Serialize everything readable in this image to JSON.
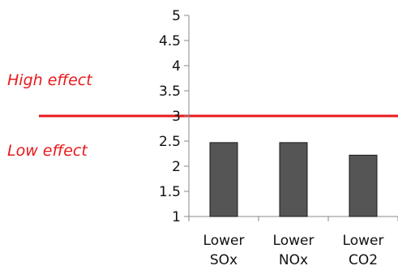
{
  "chart_data": {
    "type": "bar",
    "categories": [
      [
        "Lower",
        "SOx"
      ],
      [
        "Lower",
        "NOx"
      ],
      [
        "Lower",
        "CO2"
      ]
    ],
    "values": [
      2.47,
      2.47,
      2.22
    ],
    "ylim": [
      1,
      5
    ],
    "yticks": [
      "1",
      "1.5",
      "2",
      "2.5",
      "3",
      "3.5",
      "4",
      "4.5",
      "5"
    ],
    "grid": false,
    "legend": "none",
    "reference_line": {
      "value": 3
    },
    "annotations": {
      "above": "High effect",
      "below": "Low effect"
    },
    "colors": {
      "bar": "#555555",
      "bar_edge": "#1a1a1a",
      "axis": "#888888",
      "reference_line": "#e8191c"
    }
  }
}
